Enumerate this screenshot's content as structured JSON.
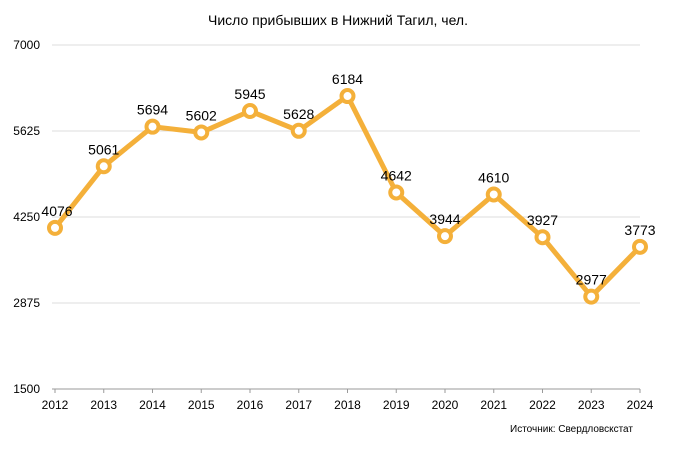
{
  "chart_data": {
    "type": "line",
    "title": "Число прибывших в Нижний Тагил, чел.",
    "xlabel": "",
    "ylabel": "",
    "x": [
      "2012",
      "2013",
      "2014",
      "2015",
      "2016",
      "2017",
      "2018",
      "2019",
      "2020",
      "2021",
      "2022",
      "2023",
      "2024"
    ],
    "series": [
      {
        "values": [
          4076,
          5061,
          5694,
          5602,
          5945,
          5628,
          6184,
          4642,
          3944,
          4610,
          3927,
          2977,
          3773
        ]
      }
    ],
    "ylim": [
      1500,
      7000
    ],
    "yticks": [
      1500,
      2875,
      4250,
      5625,
      7000
    ],
    "grid": true,
    "legend": "none",
    "line_color": "#F4B03A"
  },
  "source": "Источник: Свердловскстат"
}
